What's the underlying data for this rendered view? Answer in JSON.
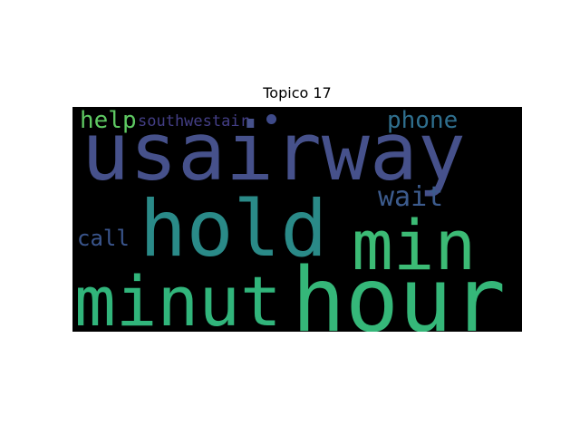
{
  "title": "Topico 17",
  "words": [
    {
      "text": "usairway",
      "color": "#46518b"
    },
    {
      "text": "hold",
      "color": "#2a8a88"
    },
    {
      "text": "hour",
      "color": "#35b779"
    },
    {
      "text": "min",
      "color": "#3cbb75"
    },
    {
      "text": "minut",
      "color": "#31b57b"
    },
    {
      "text": "wait",
      "color": "#3c5b8d"
    },
    {
      "text": "phone",
      "color": "#2f6f8e"
    },
    {
      "text": "call",
      "color": "#3a558c"
    },
    {
      "text": "help",
      "color": "#5ec962"
    },
    {
      "text": "southwestair",
      "color": "#433e85"
    }
  ],
  "dot_color": "#3e4a89"
}
